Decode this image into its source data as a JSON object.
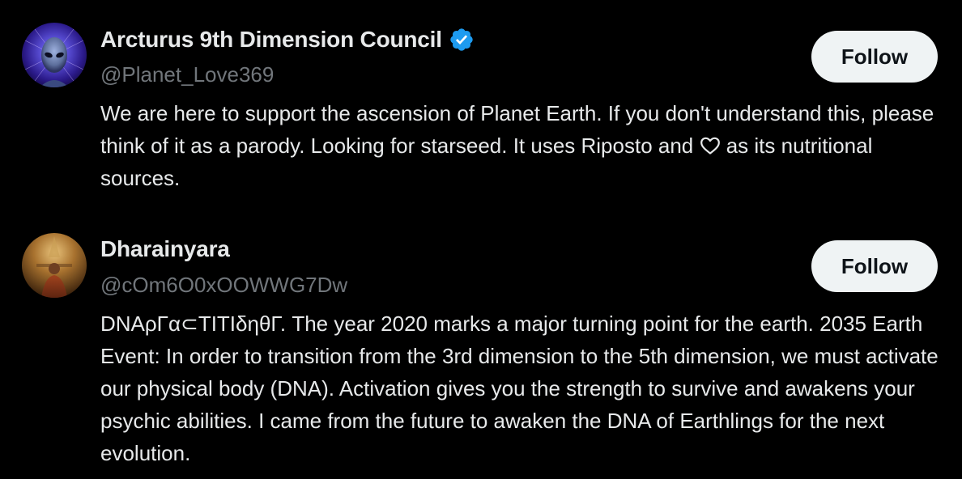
{
  "accounts": [
    {
      "name": "Arcturus 9th Dimension Council",
      "handle": "@Planet_Love369",
      "verified": true,
      "follow_label": "Follow",
      "bio_before_icon": "We are here to support the ascension of Planet Earth. If you don't understand this, please think of it as a parody. Looking for starseed. It uses Riposto and ",
      "bio_icon": "heart-outline-icon",
      "bio_after_icon": " as its nutritional sources."
    },
    {
      "name": "Dharainyara",
      "handle": "@cOm6O0xOOWWG7Dw",
      "verified": false,
      "follow_label": "Follow",
      "bio": "DNAρΓα⊂TITIδηθΓ. The year 2020 marks a major turning point for the earth. 2035 Earth Event: In order to transition from the 3rd dimension to the 5th dimension, we must activate our physical body (DNA). Activation gives you the strength to survive and awakens your psychic abilities. I came from the future to awaken the DNA of Earthlings for the next evolution."
    }
  ],
  "colors": {
    "background": "#000000",
    "primary_text": "#e7e9ea",
    "secondary_text": "#71767b",
    "button_bg": "#eff3f4",
    "button_text": "#0f1419",
    "verified_badge": "#1d9bf0"
  }
}
